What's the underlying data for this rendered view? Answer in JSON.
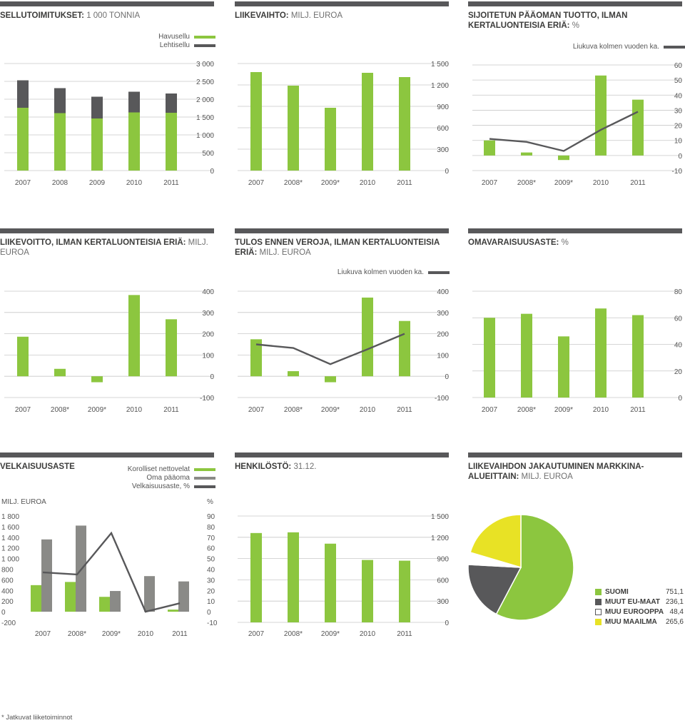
{
  "colors": {
    "green": "#8cc63f",
    "dark": "#58585a",
    "gray": "#8a8a87",
    "yellow": "#e8e225",
    "white": "#ffffff",
    "grid": "#c8c8c8",
    "text": "#555555"
  },
  "panels": {
    "p1": {
      "title_bold": "SELLUTOIMITUKSET:",
      "title_sub": "1 000 TONNIA",
      "legend": [
        "Havusellu",
        "Lehtisellu"
      ]
    },
    "p2": {
      "title_bold": "LIIKEVAIHTO:",
      "title_sub": "MILJ. EUROA"
    },
    "p3": {
      "title_bold": "SIJOITETUN PÄÄOMAN TUOTTO, ILMAN KERTALUONTEISIA ERIÄ:",
      "title_sub": "%",
      "legend": [
        "Liukuva kolmen vuoden ka."
      ]
    },
    "p4": {
      "title_bold": "LIIKEVOITTO, ILMAN KERTALUONTEISIA ERIÄ:",
      "title_sub": "MILJ. EUROA"
    },
    "p5": {
      "title_bold": "TULOS ENNEN VEROJA, ILMAN KERTALUONTEISIA ERIÄ:",
      "title_sub": "MILJ. EUROA",
      "legend": [
        "Liukuva kolmen vuoden ka."
      ]
    },
    "p6": {
      "title_bold": "OMAVARAISUUSASTE:",
      "title_sub": "%"
    },
    "p7": {
      "title_bold": "VELKAISUUSASTE",
      "title_sub": "",
      "legend": [
        "Korolliset nettovelat",
        "Oma pääoma",
        "Velkaisuusaste, %"
      ],
      "left_unit": "MILJ. EUROA",
      "right_unit": "%"
    },
    "p8": {
      "title_bold": "HENKILÖSTÖ:",
      "title_sub": "31.12."
    },
    "p9": {
      "title_bold": "LIIKEVAIHDON JAKAUTUMINEN MARKKINA-ALUEITTAIN:",
      "title_sub": "MILJ. EUROA"
    }
  },
  "chart_data": [
    {
      "id": "c1",
      "type": "bar",
      "stacked": true,
      "categories": [
        "2007",
        "2008",
        "2009",
        "2010",
        "2011"
      ],
      "series": [
        {
          "name": "Havusellu",
          "color": "green",
          "values": [
            1760,
            1610,
            1460,
            1630,
            1620
          ]
        },
        {
          "name": "Lehtisellu",
          "color": "dark",
          "values": [
            770,
            700,
            610,
            580,
            540
          ]
        }
      ],
      "ylim": [
        0,
        3000
      ],
      "yticks": [
        "0",
        "500",
        "1 000",
        "1 500",
        "2 000",
        "2 500",
        "3 000"
      ],
      "ytick_values": [
        0,
        500,
        1000,
        1500,
        2000,
        2500,
        3000
      ]
    },
    {
      "id": "c2",
      "type": "bar",
      "categories": [
        "2007",
        "2008*",
        "2009*",
        "2010",
        "2011"
      ],
      "series": [
        {
          "color": "green",
          "values": [
            1380,
            1190,
            880,
            1370,
            1310
          ]
        }
      ],
      "ylim": [
        0,
        1500
      ],
      "yticks": [
        "0",
        "300",
        "600",
        "900",
        "1 200",
        "1 500"
      ],
      "ytick_values": [
        0,
        300,
        600,
        900,
        1200,
        1500
      ]
    },
    {
      "id": "c3",
      "type": "bar+line",
      "categories": [
        "2007",
        "2008*",
        "2009*",
        "2010",
        "2011"
      ],
      "series": [
        {
          "color": "green",
          "values": [
            10,
            2,
            -3,
            53,
            37
          ]
        },
        {
          "name": "Liukuva kolmen vuoden ka.",
          "type": "line",
          "color": "dark",
          "values": [
            11,
            9,
            3,
            17,
            29
          ]
        }
      ],
      "ylim": [
        -10,
        60
      ],
      "yticks": [
        "-10",
        "0",
        "10",
        "20",
        "30",
        "40",
        "50",
        "60"
      ],
      "ytick_values": [
        -10,
        0,
        10,
        20,
        30,
        40,
        50,
        60
      ]
    },
    {
      "id": "c4",
      "type": "bar",
      "categories": [
        "2007",
        "2008*",
        "2009*",
        "2010",
        "2011"
      ],
      "series": [
        {
          "color": "green",
          "values": [
            186,
            35,
            -28,
            382,
            268
          ]
        }
      ],
      "ylim": [
        -100,
        400
      ],
      "yticks": [
        "-100",
        "0",
        "100",
        "200",
        "300",
        "400"
      ],
      "ytick_values": [
        -100,
        0,
        100,
        200,
        300,
        400
      ]
    },
    {
      "id": "c5",
      "type": "bar+line",
      "categories": [
        "2007",
        "2008*",
        "2009*",
        "2010",
        "2011"
      ],
      "series": [
        {
          "color": "green",
          "values": [
            174,
            24,
            -28,
            370,
            260
          ]
        },
        {
          "name": "Liukuva kolmen vuoden ka.",
          "type": "line",
          "color": "dark",
          "values": [
            150,
            133,
            57,
            127,
            200
          ]
        }
      ],
      "ylim": [
        -100,
        400
      ],
      "yticks": [
        "-100",
        "0",
        "100",
        "200",
        "300",
        "400"
      ],
      "ytick_values": [
        -100,
        0,
        100,
        200,
        300,
        400
      ]
    },
    {
      "id": "c6",
      "type": "bar",
      "categories": [
        "2007",
        "2008*",
        "2009*",
        "2010",
        "2011"
      ],
      "series": [
        {
          "color": "green",
          "values": [
            60,
            63,
            46,
            67,
            62
          ]
        }
      ],
      "ylim": [
        0,
        80
      ],
      "yticks": [
        "0",
        "20",
        "40",
        "60",
        "80"
      ],
      "ytick_values": [
        0,
        20,
        40,
        60,
        80
      ]
    },
    {
      "id": "c7",
      "type": "bar+line",
      "categories": [
        "2007",
        "2008*",
        "2009*",
        "2010",
        "2011"
      ],
      "series": [
        {
          "name": "Korolliset nettovelat",
          "color": "green",
          "values": [
            500,
            560,
            280,
            0,
            40
          ]
        },
        {
          "name": "Oma pääoma",
          "color": "gray",
          "values": [
            1360,
            1620,
            390,
            670,
            570
          ]
        },
        {
          "name": "Velkaisuusaste, %",
          "type": "line",
          "color": "dark",
          "axis": "right",
          "values": [
            37,
            35,
            74,
            0,
            8
          ]
        }
      ],
      "ylim": [
        -200,
        1800
      ],
      "yticks": [
        "-200",
        "0",
        "200",
        "400",
        "600",
        "800",
        "1 000",
        "1 200",
        "1 400",
        "1 600",
        "1 800"
      ],
      "ytick_values": [
        -200,
        0,
        200,
        400,
        600,
        800,
        1000,
        1200,
        1400,
        1600,
        1800
      ],
      "ylim_right": [
        -10,
        90
      ],
      "yticks_right": [
        "-10",
        "0",
        "10",
        "20",
        "30",
        "40",
        "50",
        "60",
        "70",
        "80",
        "90"
      ],
      "ytick_values_right": [
        -10,
        0,
        10,
        20,
        30,
        40,
        50,
        60,
        70,
        80,
        90
      ]
    },
    {
      "id": "c8",
      "type": "bar",
      "categories": [
        "2007",
        "2008*",
        "2009*",
        "2010",
        "2011"
      ],
      "series": [
        {
          "color": "green",
          "values": [
            1260,
            1270,
            1110,
            880,
            870
          ]
        }
      ],
      "ylim": [
        0,
        1500
      ],
      "yticks": [
        "0",
        "300",
        "600",
        "900",
        "1 200",
        "1 500"
      ],
      "ytick_values": [
        0,
        300,
        600,
        900,
        1200,
        1500
      ]
    },
    {
      "id": "c9",
      "type": "pie",
      "slices": [
        {
          "label": "SUOMI",
          "value": 751.1,
          "display": "751,1",
          "color": "green"
        },
        {
          "label": "MUUT EU-MAAT",
          "value": 236.1,
          "display": "236,1",
          "color": "dark"
        },
        {
          "label": "MUU EUROOPPA",
          "value": 48.4,
          "display": "48,4",
          "color": "white"
        },
        {
          "label": "MUU MAAILMA",
          "value": 265.6,
          "display": "265,6",
          "color": "yellow"
        }
      ]
    }
  ],
  "footnote": "* Jatkuvat liiketoiminnot"
}
